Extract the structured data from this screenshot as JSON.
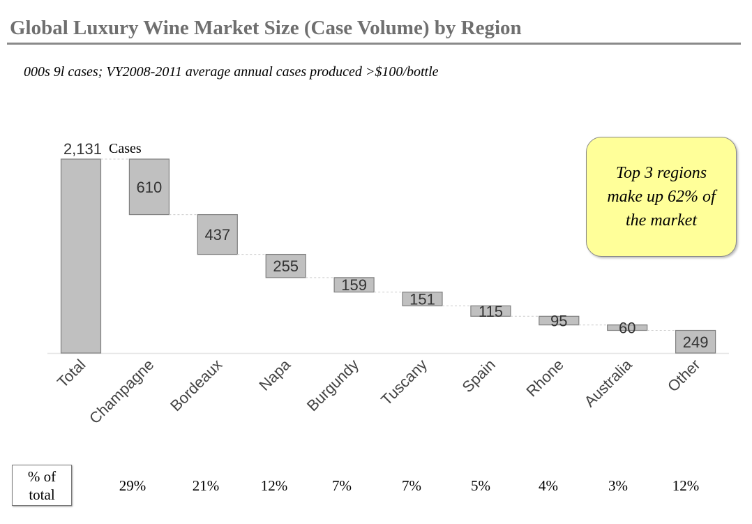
{
  "title": "Global Luxury Wine Market Size (Case Volume) by Region",
  "subtitle": "000s 9l cases; VY2008-2011 average annual cases produced >$100/bottle",
  "callout": "Top 3 regions make up 62% of the market",
  "pct_header": "% of total",
  "colors": {
    "bar": "#c0c0c0",
    "bar_border": "#7f7f7f",
    "callout": "#ffff99"
  },
  "chart_data": {
    "type": "waterfall",
    "categories": [
      "Total",
      "Champagne",
      "Bordeaux",
      "Napa",
      "Burgundy",
      "Tuscany",
      "Spain",
      "Rhone",
      "Australia",
      "Other"
    ],
    "values": [
      2131,
      610,
      437,
      255,
      159,
      151,
      115,
      95,
      60,
      249
    ],
    "total_label": "2,131",
    "total_unit": "Cases",
    "percent_of_total": [
      "29%",
      "21%",
      "12%",
      "7%",
      "7%",
      "5%",
      "4%",
      "3%",
      "12%"
    ],
    "grid": false,
    "ylim": [
      0,
      2131
    ]
  }
}
